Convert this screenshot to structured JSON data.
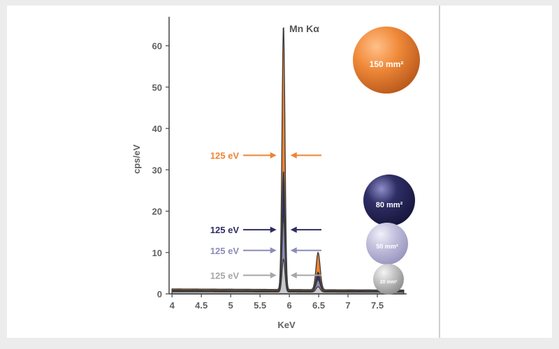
{
  "chart_data": {
    "type": "area",
    "xlabel": "KeV",
    "ylabel": "cps/eV",
    "xlim": [
      3.95,
      8.0
    ],
    "ylim": [
      0,
      66
    ],
    "x_ticks": [
      "4",
      "4.5",
      "5",
      "5.5",
      "6",
      "6.5",
      "7",
      "7.5"
    ],
    "y_ticks": [
      "0",
      "10",
      "20",
      "30",
      "40",
      "50",
      "60"
    ],
    "peak_label": "Mn Kα",
    "peaks": [
      {
        "keV": 5.9,
        "width_keV": 0.025
      },
      {
        "keV": 6.49,
        "width_keV": 0.035
      }
    ],
    "series": [
      {
        "detector": "150 mm²",
        "color": "#ee8332",
        "peak1": 64,
        "peak2": 9,
        "baseline": 1.2
      },
      {
        "detector": "80 mm²",
        "color": "#2e2d62",
        "peak1": 29,
        "peak2": 4.5,
        "baseline": 0.9
      },
      {
        "detector": "50 mm²",
        "color": "#8d8bb8",
        "peak1": 18,
        "peak2": 2.8,
        "baseline": 0.7
      },
      {
        "detector": "20 mm²",
        "color": "#c8c8cc",
        "peak1": 8,
        "peak2": 1.3,
        "baseline": 0.5
      }
    ],
    "resolution_markers": [
      {
        "label": "125 eV",
        "y": 33.5,
        "color": "#ee8332"
      },
      {
        "label": "125 eV",
        "y": 15.5,
        "color": "#2e2d62"
      },
      {
        "label": "125 eV",
        "y": 10.5,
        "color": "#8d8bb8"
      },
      {
        "label": "125 eV",
        "y": 4.5,
        "color": "#a6a6a6"
      }
    ]
  }
}
